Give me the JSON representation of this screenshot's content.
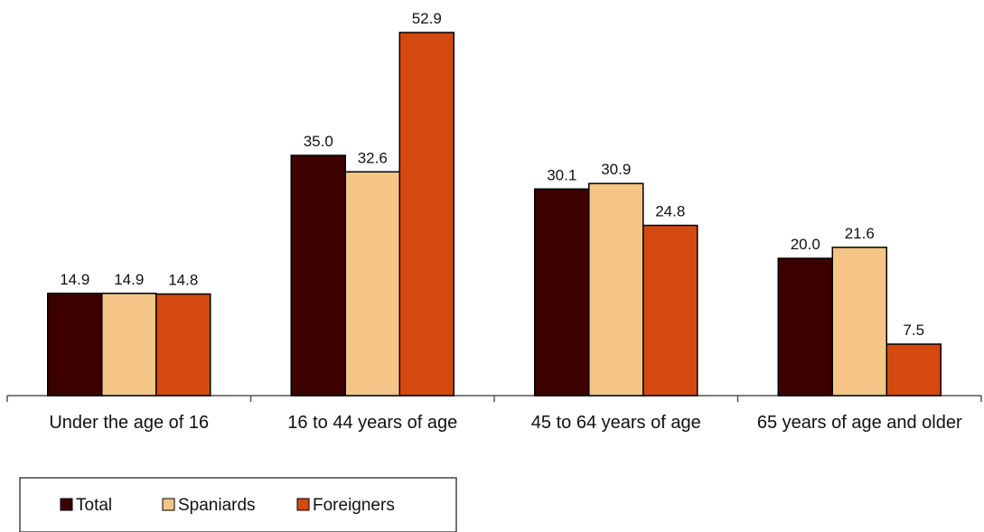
{
  "chart_data": {
    "type": "bar",
    "title": "",
    "xlabel": "",
    "ylabel": "",
    "ylim": [
      0,
      55
    ],
    "grid": false,
    "legend_position": "bottom-left",
    "categories": [
      "Under the age of 16",
      "16 to 44 years of age",
      "45 to 64 years of age",
      "65 years of age and older"
    ],
    "series": [
      {
        "name": "Total",
        "color": "#3d0000",
        "values": [
          14.9,
          35.0,
          30.1,
          20.0
        ],
        "labels": [
          "14.9",
          "35.0",
          "30.1",
          "20.0"
        ]
      },
      {
        "name": "Spaniards",
        "color": "#f4c587",
        "values": [
          14.9,
          32.6,
          30.9,
          21.6
        ],
        "labels": [
          "14.9",
          "32.6",
          "30.9",
          "21.6"
        ]
      },
      {
        "name": "Foreigners",
        "color": "#d4490f",
        "values": [
          14.8,
          52.9,
          24.8,
          7.5
        ],
        "labels": [
          "14.8",
          "52.9",
          "24.8",
          "7.5"
        ]
      }
    ]
  }
}
